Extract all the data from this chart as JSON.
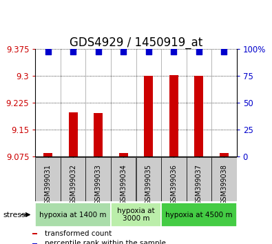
{
  "title": "GDS4929 / 1450919_at",
  "samples": [
    "GSM399031",
    "GSM399032",
    "GSM399033",
    "GSM399034",
    "GSM399035",
    "GSM399036",
    "GSM399037",
    "GSM399038"
  ],
  "bar_values": [
    9.083,
    9.197,
    9.195,
    9.084,
    9.3,
    9.302,
    9.3,
    9.083
  ],
  "percentile_values": [
    97,
    97,
    97,
    97,
    97,
    97,
    97,
    97
  ],
  "ymin": 9.075,
  "ymax": 9.375,
  "yticks": [
    9.075,
    9.15,
    9.225,
    9.3,
    9.375
  ],
  "ytick_labels": [
    "9.075",
    "9.15",
    "9.225",
    "9.3",
    "9.375"
  ],
  "right_yticks": [
    0,
    25,
    50,
    75,
    100
  ],
  "right_ytick_labels": [
    "0",
    "25",
    "50",
    "75",
    "100%"
  ],
  "bar_color": "#cc0000",
  "dot_color": "#0000cc",
  "stress_groups": [
    {
      "label": "hypoxia at 1400 m",
      "start": 0,
      "end": 2,
      "color": "#aaddaa"
    },
    {
      "label": "hypoxia at\n3000 m",
      "start": 3,
      "end": 4,
      "color": "#bbeeaa"
    },
    {
      "label": "hypoxia at 4500 m",
      "start": 5,
      "end": 7,
      "color": "#44cc44"
    }
  ],
  "legend_items": [
    {
      "color": "#cc0000",
      "label": "transformed count"
    },
    {
      "color": "#0000cc",
      "label": "percentile rank within the sample"
    }
  ],
  "tick_color_left": "#cc0000",
  "tick_color_right": "#0000cc",
  "title_fontsize": 12,
  "tick_fontsize": 8.5,
  "bar_width": 0.35,
  "dot_size": 35,
  "sample_box_color": "#cccccc",
  "stress_label": "stress"
}
